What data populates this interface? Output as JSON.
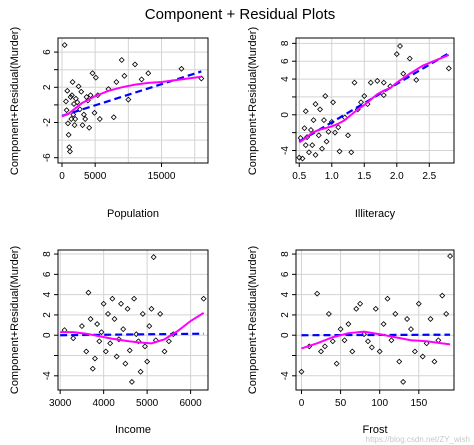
{
  "title": "Component + Residual Plots",
  "watermark": "https://blog.csdn.net/ZY_wish",
  "colors": {
    "points": "#000000",
    "linear_fit": "#0000ff",
    "smooth": "#ff00ff",
    "grid": "#d3d3d3",
    "frame": "#000000"
  },
  "chart_data": [
    {
      "type": "scatter",
      "xlabel": "Population",
      "ylabel": "Component+Residual(Murder)",
      "xlim": [
        -600,
        22000
      ],
      "ylim": [
        -6.6,
        7.6
      ],
      "xticks": [
        0,
        5000,
        15000
      ],
      "xtick_labels": [
        "0",
        "5000",
        "15000"
      ],
      "xgrid": [
        0,
        5000,
        10000,
        15000,
        20000
      ],
      "yticks": [
        -6,
        -2,
        0,
        2,
        4,
        6
      ],
      "yticks_labeled": [
        -6,
        -2,
        2,
        6
      ],
      "ygrid": [
        -6,
        -4,
        -2,
        0,
        2,
        4,
        6
      ],
      "points": [
        [
          400,
          6.8
        ],
        [
          600,
          0.4
        ],
        [
          700,
          -0.6
        ],
        [
          800,
          1.6
        ],
        [
          900,
          -2.1
        ],
        [
          1000,
          -3.4
        ],
        [
          1100,
          -4.8
        ],
        [
          1200,
          -5.3
        ],
        [
          1300,
          0.9
        ],
        [
          1400,
          -1.6
        ],
        [
          1500,
          1.1
        ],
        [
          1600,
          2.6
        ],
        [
          1700,
          -1.1
        ],
        [
          1800,
          0.1
        ],
        [
          1900,
          -2.3
        ],
        [
          2000,
          -1.6
        ],
        [
          2100,
          0.7
        ],
        [
          2300,
          0.3
        ],
        [
          2500,
          2.1
        ],
        [
          2700,
          -0.5
        ],
        [
          2900,
          1.5
        ],
        [
          3100,
          -2.3
        ],
        [
          3300,
          -1.1
        ],
        [
          3500,
          -1.6
        ],
        [
          3700,
          0.9
        ],
        [
          3900,
          0.5
        ],
        [
          4100,
          -2.6
        ],
        [
          4300,
          1.1
        ],
        [
          4600,
          3.6
        ],
        [
          4900,
          -0.9
        ],
        [
          5100,
          3.1
        ],
        [
          5400,
          1.1
        ],
        [
          5700,
          -1.6
        ],
        [
          7000,
          1.8
        ],
        [
          7800,
          -1.4
        ],
        [
          8200,
          2.6
        ],
        [
          9000,
          5.1
        ],
        [
          9400,
          3.3
        ],
        [
          10000,
          0.6
        ],
        [
          11000,
          4.6
        ],
        [
          12000,
          2.9
        ],
        [
          13000,
          3.6
        ],
        [
          18000,
          4.1
        ],
        [
          21000,
          3.0
        ]
      ],
      "linear_fit": [
        [
          0,
          -1.25
        ],
        [
          21000,
          3.8
        ]
      ],
      "smooth": [
        [
          0,
          -1.3
        ],
        [
          1000,
          -1.0
        ],
        [
          2000,
          -0.4
        ],
        [
          3000,
          0.2
        ],
        [
          4000,
          0.6
        ],
        [
          5000,
          1.0
        ],
        [
          7000,
          1.6
        ],
        [
          9000,
          2.0
        ],
        [
          11000,
          2.3
        ],
        [
          13000,
          2.5
        ],
        [
          15000,
          2.6
        ],
        [
          17000,
          2.8
        ],
        [
          19000,
          3.0
        ],
        [
          21000,
          3.2
        ]
      ]
    },
    {
      "type": "scatter",
      "xlabel": "Illiteracy",
      "ylabel": "Component+Residual(Murder)",
      "xlim": [
        0.45,
        2.88
      ],
      "ylim": [
        -5.4,
        8.6
      ],
      "xticks": [
        0.5,
        1.0,
        1.5,
        2.0,
        2.5
      ],
      "xtick_labels": [
        "0.5",
        "1.0",
        "1.5",
        "2.0",
        "2.5"
      ],
      "xgrid": [
        0.5,
        1.0,
        1.5,
        2.0,
        2.5
      ],
      "yticks": [
        -4,
        -2,
        0,
        2,
        4,
        6,
        8
      ],
      "yticks_labeled": [
        -4,
        0,
        4,
        6,
        8
      ],
      "ygrid": [
        -4,
        -2,
        0,
        2,
        4,
        6,
        8
      ],
      "points": [
        [
          0.5,
          -4.8
        ],
        [
          0.52,
          -2.6
        ],
        [
          0.55,
          -4.9
        ],
        [
          0.58,
          -1.5
        ],
        [
          0.6,
          -3.4
        ],
        [
          0.6,
          0.4
        ],
        [
          0.62,
          -2.5
        ],
        [
          0.65,
          -4.2
        ],
        [
          0.68,
          -1.7
        ],
        [
          0.7,
          -3.4
        ],
        [
          0.72,
          -0.6
        ],
        [
          0.75,
          -4.5
        ],
        [
          0.75,
          1.2
        ],
        [
          0.8,
          -2.3
        ],
        [
          0.82,
          0.6
        ],
        [
          0.85,
          -3.8
        ],
        [
          0.88,
          -0.6
        ],
        [
          0.9,
          2.1
        ],
        [
          0.92,
          -3.0
        ],
        [
          0.95,
          -1.9
        ],
        [
          1.0,
          -0.8
        ],
        [
          1.02,
          1.4
        ],
        [
          1.05,
          -2.0
        ],
        [
          1.1,
          -1.4
        ],
        [
          1.12,
          -4.1
        ],
        [
          1.2,
          -0.3
        ],
        [
          1.25,
          -2.3
        ],
        [
          1.3,
          -4.2
        ],
        [
          1.35,
          3.6
        ],
        [
          1.4,
          0.6
        ],
        [
          1.45,
          1.4
        ],
        [
          1.5,
          2.1
        ],
        [
          1.55,
          1.2
        ],
        [
          1.6,
          3.6
        ],
        [
          1.7,
          3.8
        ],
        [
          1.8,
          3.6
        ],
        [
          1.8,
          2.2
        ],
        [
          1.9,
          3.2
        ],
        [
          2.0,
          6.8
        ],
        [
          2.05,
          7.7
        ],
        [
          2.1,
          4.6
        ],
        [
          2.2,
          6.3
        ],
        [
          2.3,
          3.9
        ],
        [
          2.8,
          5.2
        ]
      ],
      "linear_fit": [
        [
          0.5,
          -3.0
        ],
        [
          2.8,
          6.9
        ]
      ],
      "smooth": [
        [
          0.5,
          -3.1
        ],
        [
          0.6,
          -2.6
        ],
        [
          0.7,
          -2.0
        ],
        [
          0.8,
          -1.7
        ],
        [
          1.0,
          -1.3
        ],
        [
          1.1,
          -1.0
        ],
        [
          1.2,
          -0.6
        ],
        [
          1.3,
          0.0
        ],
        [
          1.4,
          0.6
        ],
        [
          1.5,
          1.1
        ],
        [
          1.6,
          1.7
        ],
        [
          1.7,
          2.3
        ],
        [
          1.8,
          2.7
        ],
        [
          1.9,
          3.0
        ],
        [
          2.0,
          3.6
        ],
        [
          2.2,
          4.6
        ],
        [
          2.4,
          5.5
        ],
        [
          2.6,
          6.1
        ],
        [
          2.8,
          6.7
        ]
      ]
    },
    {
      "type": "scatter",
      "xlabel": "Income",
      "ylabel": "Component+Residual(Murder)",
      "xlim": [
        2950,
        6400
      ],
      "ylim": [
        -5.4,
        8.4
      ],
      "xticks": [
        3000,
        4000,
        5000,
        6000
      ],
      "xtick_labels": [
        "3000",
        "4000",
        "5000",
        "6000"
      ],
      "xgrid": [
        3000,
        4000,
        5000,
        6000
      ],
      "yticks": [
        -4,
        -2,
        0,
        2,
        4,
        6,
        8
      ],
      "yticks_labeled": [
        -4,
        0,
        2,
        4,
        6,
        8
      ],
      "ygrid": [
        -4,
        -2,
        0,
        2,
        4,
        6,
        8
      ],
      "points": [
        [
          3100,
          0.5
        ],
        [
          3300,
          -0.3
        ],
        [
          3500,
          0.9
        ],
        [
          3600,
          -1.6
        ],
        [
          3650,
          4.2
        ],
        [
          3700,
          1.6
        ],
        [
          3750,
          -3.3
        ],
        [
          3800,
          -2.3
        ],
        [
          3850,
          1.1
        ],
        [
          3900,
          -0.6
        ],
        [
          3950,
          0.3
        ],
        [
          4000,
          3.1
        ],
        [
          4050,
          -1.6
        ],
        [
          4100,
          2.1
        ],
        [
          4150,
          -0.8
        ],
        [
          4200,
          3.6
        ],
        [
          4250,
          1.6
        ],
        [
          4300,
          -2.1
        ],
        [
          4350,
          -0.4
        ],
        [
          4400,
          3.1
        ],
        [
          4450,
          0.6
        ],
        [
          4500,
          -2.8
        ],
        [
          4550,
          2.6
        ],
        [
          4600,
          -1.5
        ],
        [
          4650,
          -4.6
        ],
        [
          4700,
          3.6
        ],
        [
          4750,
          0.1
        ],
        [
          4800,
          -0.6
        ],
        [
          4850,
          -3.6
        ],
        [
          4900,
          2.1
        ],
        [
          4950,
          -1.1
        ],
        [
          5000,
          -2.6
        ],
        [
          5050,
          0.9
        ],
        [
          5100,
          2.6
        ],
        [
          5150,
          7.7
        ],
        [
          5200,
          -0.5
        ],
        [
          5300,
          2.1
        ],
        [
          5400,
          -1.6
        ],
        [
          5500,
          -0.6
        ],
        [
          5600,
          0.1
        ],
        [
          6300,
          3.6
        ]
      ],
      "linear_fit": [
        [
          3000,
          0.0
        ],
        [
          6300,
          0.15
        ]
      ],
      "smooth": [
        [
          3000,
          0.3
        ],
        [
          3300,
          0.3
        ],
        [
          3600,
          0.15
        ],
        [
          3900,
          -0.1
        ],
        [
          4200,
          -0.35
        ],
        [
          4500,
          -0.55
        ],
        [
          4800,
          -0.7
        ],
        [
          5100,
          -0.8
        ],
        [
          5400,
          -0.4
        ],
        [
          5700,
          0.4
        ],
        [
          6000,
          1.4
        ],
        [
          6300,
          2.2
        ]
      ]
    },
    {
      "type": "scatter",
      "xlabel": "Frost",
      "ylabel": "Component+Residual(Murder)",
      "xlim": [
        -7,
        195
      ],
      "ylim": [
        -5.4,
        8.4
      ],
      "xticks": [
        0,
        50,
        100,
        150
      ],
      "xtick_labels": [
        "0",
        "50",
        "100",
        "150"
      ],
      "xgrid": [
        0,
        50,
        100,
        150
      ],
      "yticks": [
        -4,
        -2,
        0,
        2,
        4,
        6,
        8
      ],
      "yticks_labeled": [
        -4,
        0,
        2,
        4,
        6,
        8
      ],
      "ygrid": [
        -4,
        -2,
        0,
        2,
        4,
        6,
        8
      ],
      "points": [
        [
          0,
          -3.6
        ],
        [
          10,
          -1.1
        ],
        [
          20,
          4.1
        ],
        [
          25,
          -1.6
        ],
        [
          30,
          -1.1
        ],
        [
          35,
          2.1
        ],
        [
          40,
          -0.6
        ],
        [
          45,
          -2.8
        ],
        [
          50,
          0.6
        ],
        [
          55,
          -0.5
        ],
        [
          60,
          1.1
        ],
        [
          65,
          -1.6
        ],
        [
          70,
          2.6
        ],
        [
          75,
          3.1
        ],
        [
          80,
          0.1
        ],
        [
          85,
          -0.6
        ],
        [
          90,
          -1.2
        ],
        [
          95,
          2.6
        ],
        [
          100,
          -1.6
        ],
        [
          105,
          1.1
        ],
        [
          110,
          3.6
        ],
        [
          115,
          -0.5
        ],
        [
          120,
          2.1
        ],
        [
          125,
          -2.6
        ],
        [
          130,
          -4.6
        ],
        [
          135,
          1.6
        ],
        [
          140,
          0.6
        ],
        [
          145,
          -1.6
        ],
        [
          150,
          3.1
        ],
        [
          155,
          -2.1
        ],
        [
          160,
          -0.8
        ],
        [
          165,
          1.6
        ],
        [
          170,
          -2.6
        ],
        [
          175,
          -0.5
        ],
        [
          180,
          3.9
        ],
        [
          185,
          2.1
        ],
        [
          190,
          7.8
        ]
      ],
      "linear_fit": [
        [
          0,
          0.0
        ],
        [
          190,
          0.05
        ]
      ],
      "smooth": [
        [
          0,
          -1.3
        ],
        [
          20,
          -0.8
        ],
        [
          40,
          -0.2
        ],
        [
          60,
          0.2
        ],
        [
          80,
          0.35
        ],
        [
          100,
          0.1
        ],
        [
          120,
          -0.2
        ],
        [
          140,
          -0.5
        ],
        [
          160,
          -0.6
        ],
        [
          180,
          -0.8
        ],
        [
          190,
          -0.9
        ]
      ]
    }
  ]
}
